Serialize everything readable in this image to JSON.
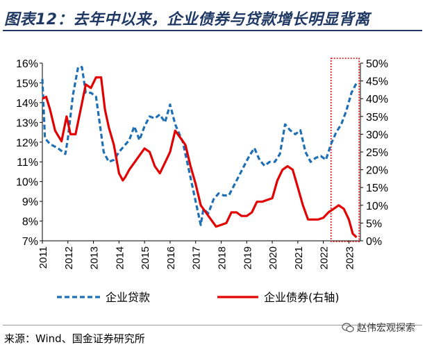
{
  "title": "图表12：去年中以来，企业债券与贷款增长明显背离",
  "source": "来源：Wind、国金证券研究所",
  "watermark": "赵伟宏观探索",
  "colors": {
    "title": "#1f3864",
    "loan": "#1f6fb5",
    "bond": "#e30000",
    "highlight": "#e30000"
  },
  "chart_data": {
    "type": "line",
    "x_tick_labels": [
      "2011",
      "2012",
      "2013",
      "2014",
      "2015",
      "2016",
      "2017",
      "2018",
      "2019",
      "2020",
      "2021",
      "2022",
      "2023"
    ],
    "left_axis": {
      "range": [
        7,
        16
      ],
      "tick_labels": [
        "16%",
        "15%",
        "14%",
        "13%",
        "12%",
        "11%",
        "10%",
        "9%",
        "8%",
        "7%"
      ]
    },
    "right_axis": {
      "range": [
        0,
        50
      ],
      "tick_labels": [
        "50%",
        "45%",
        "40%",
        "35%",
        "30%",
        "25%",
        "20%",
        "15%",
        "10%",
        "5%",
        "0%"
      ]
    },
    "series": [
      {
        "name": "企业贷款",
        "axis": "left",
        "style": "dashed",
        "x": [
          2011.0,
          2011.1,
          2011.3,
          2011.6,
          2011.9,
          2012.0,
          2012.2,
          2012.4,
          2012.55,
          2012.7,
          2012.9,
          2013.1,
          2013.4,
          2013.6,
          2013.8,
          2014.0,
          2014.2,
          2014.4,
          2014.6,
          2014.8,
          2015.0,
          2015.2,
          2015.4,
          2015.6,
          2015.8,
          2016.0,
          2016.2,
          2016.5,
          2016.8,
          2017.0,
          2017.2,
          2017.3,
          2017.5,
          2017.7,
          2017.9,
          2018.1,
          2018.3,
          2018.5,
          2018.7,
          2018.9,
          2019.1,
          2019.3,
          2019.5,
          2019.7,
          2019.9,
          2020.1,
          2020.3,
          2020.5,
          2020.7,
          2020.9,
          2021.1,
          2021.3,
          2021.5,
          2021.7,
          2021.9,
          2022.1,
          2022.3,
          2022.5,
          2022.7,
          2022.9,
          2023.1,
          2023.3
        ],
        "values": [
          15.2,
          12.2,
          11.9,
          11.7,
          11.4,
          12.2,
          14.4,
          15.8,
          15.8,
          14.5,
          14.5,
          14.3,
          11.5,
          11.0,
          11.1,
          11.5,
          11.8,
          12.1,
          12.8,
          12.1,
          12.8,
          13.3,
          13.2,
          13.4,
          13.0,
          13.9,
          12.9,
          12.0,
          10.2,
          9.0,
          7.8,
          8.6,
          8.4,
          9.1,
          9.4,
          9.3,
          9.3,
          9.8,
          10.3,
          10.8,
          11.3,
          11.7,
          11.1,
          10.8,
          11.0,
          11.0,
          11.4,
          12.9,
          12.6,
          12.4,
          12.6,
          11.5,
          11.0,
          11.2,
          11.3,
          11.1,
          11.9,
          12.5,
          12.9,
          13.6,
          14.5,
          15.0
        ]
      },
      {
        "name": "企业债券(右轴)",
        "axis": "right",
        "style": "solid",
        "x": [
          2011.0,
          2011.15,
          2011.3,
          2011.5,
          2011.75,
          2011.95,
          2012.1,
          2012.3,
          2012.5,
          2012.7,
          2012.9,
          2013.1,
          2013.3,
          2013.45,
          2013.6,
          2013.8,
          2014.0,
          2014.15,
          2014.25,
          2014.4,
          2014.6,
          2014.8,
          2015.0,
          2015.2,
          2015.4,
          2015.6,
          2015.8,
          2016.0,
          2016.2,
          2016.4,
          2016.6,
          2016.8,
          2017.0,
          2017.2,
          2017.4,
          2017.6,
          2017.8,
          2018.0,
          2018.2,
          2018.4,
          2018.6,
          2018.8,
          2019.0,
          2019.2,
          2019.4,
          2019.6,
          2019.8,
          2020.0,
          2020.2,
          2020.4,
          2020.6,
          2020.8,
          2021.0,
          2021.2,
          2021.4,
          2021.6,
          2021.8,
          2022.0,
          2022.2,
          2022.4,
          2022.6,
          2022.8,
          2023.0,
          2023.15,
          2023.3
        ],
        "values": [
          40,
          40.5,
          37,
          31,
          28,
          35,
          30,
          30,
          37,
          44,
          43,
          46,
          46,
          37,
          32,
          27,
          19,
          17,
          18,
          20,
          22,
          24,
          26,
          25,
          21,
          19,
          22,
          25,
          31,
          29,
          27,
          21,
          16,
          10,
          8,
          6,
          4,
          4.5,
          5,
          8,
          8,
          7,
          7,
          8,
          11,
          11,
          11.5,
          12,
          17,
          20,
          21,
          20,
          15,
          10,
          6,
          6,
          6,
          6.5,
          8,
          9,
          10,
          9,
          6,
          2,
          1
        ]
      }
    ],
    "legend": {
      "position": "bottom",
      "entries": [
        "企业贷款",
        "企业债券(右轴)"
      ]
    },
    "highlight": {
      "x_range": [
        2022.3,
        2023.4
      ],
      "style": "dotted-box"
    }
  }
}
